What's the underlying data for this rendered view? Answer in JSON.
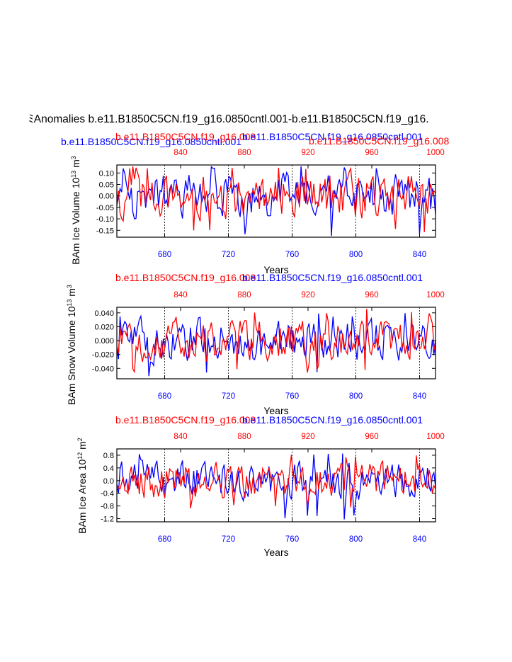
{
  "main_title": "Anomalies b.e11.B1850C5CN.f19_g16.0850cntl.001-b.e11.B1850C5CN.f19_g16.",
  "main_title_prefix": "ﾐ",
  "colors": {
    "blue_series": "#0000ff",
    "red_series": "#ff0000",
    "axis": "#000000"
  },
  "chart_data": [
    {
      "type": "line",
      "title": "",
      "top_labels": {
        "red": "b.e11.B1850C5CN.f19_g16.008",
        "blue": "b.e11.B1850C5CN.f19_g16.0850cntl.001",
        "blue_overlap": "b.e11.B1850C5CN.f19_g16.0850cntl.001",
        "red_overlap": "b.e11.B1850C5CN.f19_g16.008"
      },
      "ylabel": "BAm Ice Volume 10",
      "ylabel_exp": "13",
      "ylabel_unit": " m",
      "ylabel_unit_exp": "3",
      "xlabel": "Years",
      "ylim": [
        -0.18,
        0.135
      ],
      "yticks": [
        -0.15,
        -0.1,
        -0.05,
        0.0,
        0.05,
        0.1
      ],
      "ytick_labels": [
        "-0.15",
        "-0.10",
        "-0.05",
        "0.00",
        "0.05",
        "0.10"
      ],
      "bottom_xlim": [
        650,
        850
      ],
      "bottom_xticks": [
        680,
        720,
        760,
        800,
        840
      ],
      "top_xlim": [
        800,
        1000
      ],
      "top_xticks": [
        840,
        880,
        920,
        960,
        1000
      ],
      "seed": 11,
      "series": [
        {
          "name": "b.e11.B1850C5CN.f19_g16.0850cntl.001",
          "color": "blue",
          "n": 200,
          "amp": 0.065,
          "min": -0.175,
          "max": 0.13
        },
        {
          "name": "b.e11.B1850C5CN.f19_g16.008",
          "color": "red",
          "n": 200,
          "amp": 0.065,
          "min": -0.16,
          "max": 0.13
        }
      ]
    },
    {
      "type": "line",
      "title": "",
      "top_labels": {
        "red": "b.e11.B1850C5CN.f19_g16.008",
        "blue": "b.e11.B1850C5CN.f19_g16.0850cntl.001"
      },
      "ylabel": "BAm Snow Volume 10",
      "ylabel_exp": "13",
      "ylabel_unit": " m",
      "ylabel_unit_exp": "3",
      "xlabel": "Years",
      "ylim": [
        -0.055,
        0.048
      ],
      "yticks": [
        -0.04,
        -0.02,
        0.0,
        0.02,
        0.04
      ],
      "ytick_labels": [
        "-0.040",
        "-0.020",
        "0.000",
        "0.020",
        "0.040"
      ],
      "bottom_xlim": [
        650,
        850
      ],
      "bottom_xticks": [
        680,
        720,
        760,
        800,
        840
      ],
      "top_xlim": [
        800,
        1000
      ],
      "top_xticks": [
        840,
        880,
        920,
        960,
        1000
      ],
      "seed": 23,
      "series": [
        {
          "name": "b.e11.B1850C5CN.f19_g16.0850cntl.001",
          "color": "blue",
          "n": 200,
          "amp": 0.02,
          "min": -0.052,
          "max": 0.04
        },
        {
          "name": "b.e11.B1850C5CN.f19_g16.008",
          "color": "red",
          "n": 200,
          "amp": 0.02,
          "min": -0.048,
          "max": 0.046
        }
      ]
    },
    {
      "type": "line",
      "title": "",
      "top_labels": {
        "red": "b.e11.B1850C5CN.f19_g16.008",
        "blue": "b.e11.B1850C5CN.f19_g16.0850cntl.001"
      },
      "ylabel": "BAm Ice Area 10",
      "ylabel_exp": "12",
      "ylabel_unit": " m",
      "ylabel_unit_exp": "2",
      "xlabel": "Years",
      "ylim": [
        -1.3,
        1.0
      ],
      "yticks": [
        -1.2,
        -0.8,
        -0.4,
        0.0,
        0.4,
        0.8
      ],
      "ytick_labels": [
        "-1.2",
        "-0.8",
        "-0.4",
        "0.0",
        "0.4",
        "0.8"
      ],
      "bottom_xlim": [
        650,
        850
      ],
      "bottom_xticks": [
        680,
        720,
        760,
        800,
        840
      ],
      "top_xlim": [
        800,
        1000
      ],
      "top_xticks": [
        840,
        880,
        920,
        960,
        1000
      ],
      "seed": 37,
      "series": [
        {
          "name": "b.e11.B1850C5CN.f19_g16.0850cntl.001",
          "color": "blue",
          "n": 200,
          "amp": 0.38,
          "min": -1.25,
          "max": 0.95
        },
        {
          "name": "b.e11.B1850C5CN.f19_g16.008",
          "color": "red",
          "n": 200,
          "amp": 0.38,
          "min": -0.9,
          "max": 0.85
        }
      ]
    }
  ]
}
